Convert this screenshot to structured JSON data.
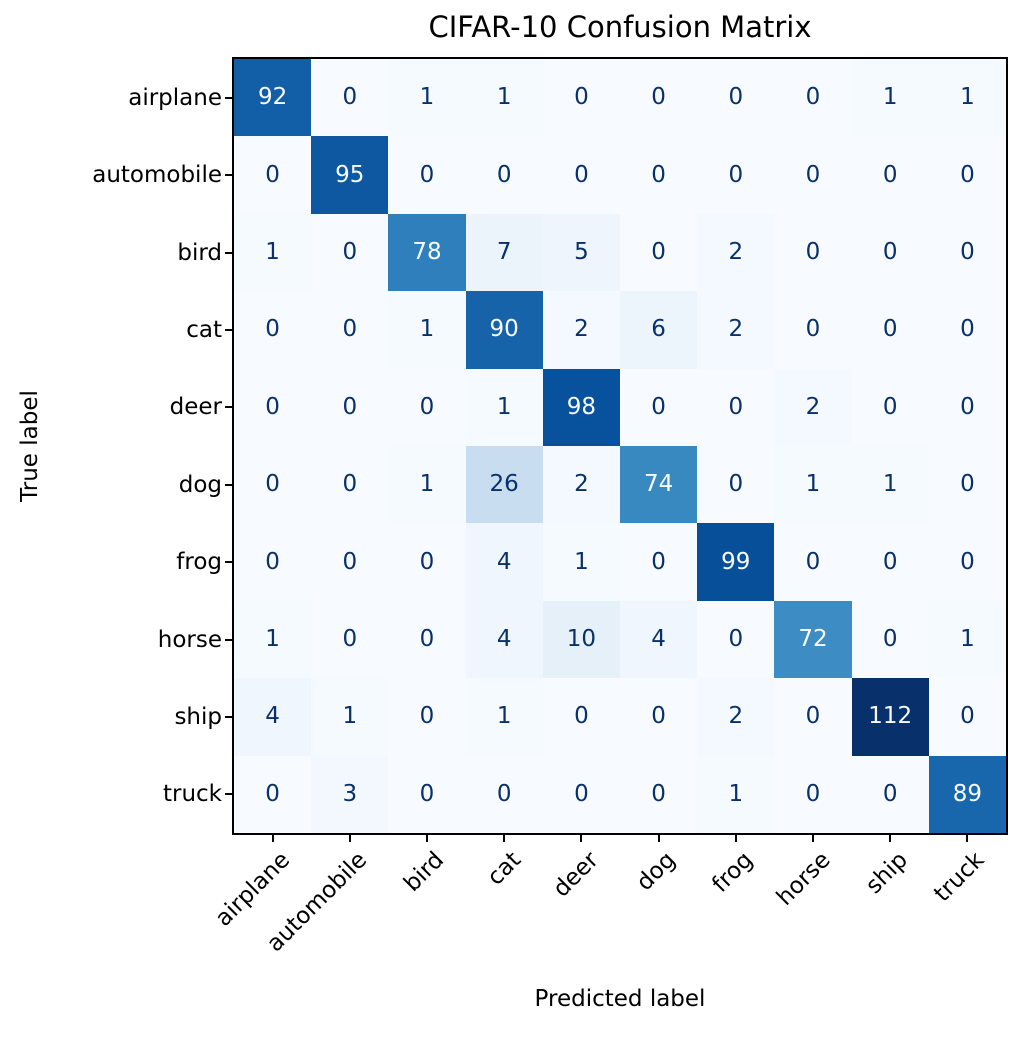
{
  "chart_data": {
    "type": "heatmap",
    "title": "CIFAR-10 Confusion Matrix",
    "xlabel": "Predicted label",
    "ylabel": "True label",
    "categories": [
      "airplane",
      "automobile",
      "bird",
      "cat",
      "deer",
      "dog",
      "frog",
      "horse",
      "ship",
      "truck"
    ],
    "matrix": [
      [
        92,
        0,
        1,
        1,
        0,
        0,
        0,
        0,
        1,
        1
      ],
      [
        0,
        95,
        0,
        0,
        0,
        0,
        0,
        0,
        0,
        0
      ],
      [
        1,
        0,
        78,
        7,
        5,
        0,
        2,
        0,
        0,
        0
      ],
      [
        0,
        0,
        1,
        90,
        2,
        6,
        2,
        0,
        0,
        0
      ],
      [
        0,
        0,
        0,
        1,
        98,
        0,
        0,
        2,
        0,
        0
      ],
      [
        0,
        0,
        1,
        26,
        2,
        74,
        0,
        1,
        1,
        0
      ],
      [
        0,
        0,
        0,
        4,
        1,
        0,
        99,
        0,
        0,
        0
      ],
      [
        1,
        0,
        0,
        4,
        10,
        4,
        0,
        72,
        0,
        1
      ],
      [
        4,
        1,
        0,
        1,
        0,
        0,
        2,
        0,
        112,
        0
      ],
      [
        0,
        3,
        0,
        0,
        0,
        0,
        1,
        0,
        0,
        89
      ]
    ],
    "vmin": 0,
    "vmax": 112,
    "colormap": {
      "name": "Blues",
      "stops": [
        "#f7fbff",
        "#deebf7",
        "#c6dbef",
        "#9ecae1",
        "#6baed6",
        "#4292c6",
        "#2171b5",
        "#08519c",
        "#08306b"
      ]
    },
    "cell_text_color_dark": "#08306b",
    "cell_text_color_light": "#f7fbff",
    "axis_color": "#000000",
    "background_color": "#ffffff",
    "grid": "off",
    "legend": "off",
    "x_tick_rotation_deg": 45
  }
}
